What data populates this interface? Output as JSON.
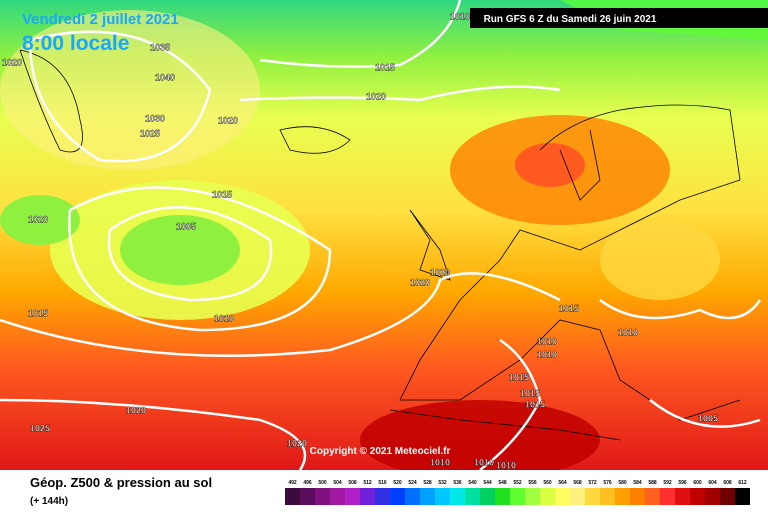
{
  "header": {
    "date": "Vendredi 2 juillet 2021",
    "time": "8:00 locale",
    "run": "Run GFS 6 Z du Samedi 26 juin 2021"
  },
  "copyright": "Copyright © 2021 Meteociel.fr",
  "footer": {
    "title": "Géop. Z500 & pression au sol",
    "lead": "(+ 144h)"
  },
  "isobar_labels": [
    "1010",
    "1035",
    "1020",
    "1015",
    "1040",
    "1020",
    "1030",
    "1020",
    "1025",
    "1015",
    "1020",
    "1005",
    "1020",
    "1020",
    "1015",
    "1015",
    "1010",
    "1010",
    "1010",
    "1010",
    "1015",
    "1015",
    "1015",
    "1020",
    "1005",
    "1025",
    "1020",
    "1010",
    "1010",
    "1010"
  ],
  "legend": [
    {
      "value": 492,
      "color": "#3c0a3c"
    },
    {
      "value": 496,
      "color": "#5a0d5a"
    },
    {
      "value": 500,
      "color": "#800f80"
    },
    {
      "value": 504,
      "color": "#a11aa1"
    },
    {
      "value": 508,
      "color": "#b020c8"
    },
    {
      "value": 512,
      "color": "#7020d8"
    },
    {
      "value": 516,
      "color": "#3030e0"
    },
    {
      "value": 520,
      "color": "#0040ff"
    },
    {
      "value": 524,
      "color": "#0070ff"
    },
    {
      "value": 528,
      "color": "#00a0ff"
    },
    {
      "value": 532,
      "color": "#00c8ff"
    },
    {
      "value": 536,
      "color": "#00e8e8"
    },
    {
      "value": 540,
      "color": "#00e0a0"
    },
    {
      "value": 544,
      "color": "#00d060"
    },
    {
      "value": 548,
      "color": "#20e020"
    },
    {
      "value": 552,
      "color": "#60ff30"
    },
    {
      "value": 556,
      "color": "#a0ff40"
    },
    {
      "value": 560,
      "color": "#d8ff40"
    },
    {
      "value": 564,
      "color": "#ffff60"
    },
    {
      "value": 568,
      "color": "#fff080"
    },
    {
      "value": 572,
      "color": "#ffd840"
    },
    {
      "value": 576,
      "color": "#ffbf20"
    },
    {
      "value": 580,
      "color": "#ffa000"
    },
    {
      "value": 584,
      "color": "#ff8000"
    },
    {
      "value": 588,
      "color": "#ff6020"
    },
    {
      "value": 592,
      "color": "#ff3030"
    },
    {
      "value": 596,
      "color": "#e01010"
    },
    {
      "value": 600,
      "color": "#c00000"
    },
    {
      "value": 604,
      "color": "#a00000"
    },
    {
      "value": 608,
      "color": "#700000"
    },
    {
      "value": 612,
      "color": "#000000"
    }
  ]
}
